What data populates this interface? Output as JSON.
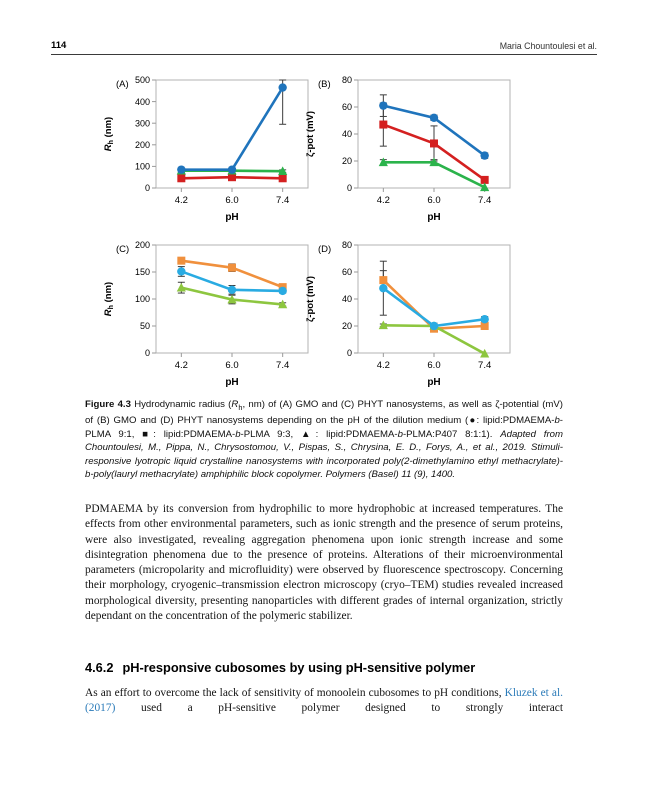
{
  "page": {
    "number": "114",
    "running_head": "Maria Chountoulesi et al."
  },
  "chart_data": [
    {
      "id": "A",
      "panel_label": "(A)",
      "type": "line",
      "x_categories": [
        "4.2",
        "6.0",
        "7.4"
      ],
      "xlabel": "pH",
      "ylabel_segments": [
        {
          "t": "R",
          "s": "i"
        },
        {
          "t": "h",
          "s": "sub"
        },
        {
          "t": " (nm)",
          "s": ""
        }
      ],
      "ylim": [
        0,
        500
      ],
      "yticks": [
        0,
        100,
        200,
        300,
        400,
        500
      ],
      "grid": false,
      "legend": "none",
      "series": [
        {
          "name": "lipid:PDMAEMA-b-PLMA 9:1",
          "marker": "circle",
          "color": "#1f74bc",
          "values": [
            85,
            85,
            465
          ],
          "errors": [
            6,
            5,
            170
          ]
        },
        {
          "name": "lipid:PDMAEMA-b-PLMA 9:3",
          "marker": "square",
          "color": "#d42020",
          "values": [
            45,
            50,
            45
          ],
          "errors": [
            5,
            4,
            5
          ]
        },
        {
          "name": "lipid:PDMAEMA-b-PLMA:P407 8:1:1",
          "marker": "triangle",
          "color": "#2bb34b",
          "values": [
            80,
            80,
            78
          ],
          "errors": [
            8,
            8,
            6
          ]
        }
      ]
    },
    {
      "id": "B",
      "panel_label": "(B)",
      "type": "line",
      "x_categories": [
        "4.2",
        "6.0",
        "7.4"
      ],
      "xlabel": "pH",
      "ylabel_segments": [
        {
          "t": "ζ-pot (mV)",
          "s": ""
        }
      ],
      "ylim": [
        0,
        80
      ],
      "yticks": [
        0,
        20,
        40,
        60,
        80
      ],
      "grid": false,
      "legend": "none",
      "series": [
        {
          "name": "lipid:PDMAEMA-b-PLMA 9:1",
          "marker": "circle",
          "color": "#1f74bc",
          "values": [
            61,
            52,
            24
          ],
          "errors": [
            8,
            2,
            2
          ]
        },
        {
          "name": "lipid:PDMAEMA-b-PLMA 9:3",
          "marker": "square",
          "color": "#d42020",
          "values": [
            47,
            33,
            6
          ],
          "errors": [
            16,
            13,
            1
          ]
        },
        {
          "name": "lipid:PDMAEMA-b-PLMA:P407 8:1:1",
          "marker": "triangle",
          "color": "#2bb34b",
          "values": [
            19,
            19,
            0.5
          ],
          "errors": [
            2,
            2,
            0
          ]
        }
      ]
    },
    {
      "id": "C",
      "panel_label": "(C)",
      "type": "line",
      "x_categories": [
        "4.2",
        "6.0",
        "7.4"
      ],
      "xlabel": "pH",
      "ylabel_segments": [
        {
          "t": "R",
          "s": "i"
        },
        {
          "t": "h",
          "s": "sub"
        },
        {
          "t": " (nm)",
          "s": ""
        }
      ],
      "ylim": [
        0,
        200
      ],
      "yticks": [
        0,
        50,
        100,
        150,
        200
      ],
      "grid": false,
      "legend": "none",
      "series": [
        {
          "name": "lipid:PDMAEMA-b-PLMA 9:1",
          "marker": "circle",
          "color": "#29abe2",
          "values": [
            151,
            117,
            115
          ],
          "errors": [
            9,
            8,
            4
          ]
        },
        {
          "name": "lipid:PDMAEMA-b-PLMA 9:3",
          "marker": "square",
          "color": "#f0903d",
          "values": [
            171,
            158,
            122
          ],
          "errors": [
            5,
            7,
            4
          ]
        },
        {
          "name": "lipid:PDMAEMA-b-PLMA:P407 8:1:1",
          "marker": "triangle",
          "color": "#8dc63f",
          "values": [
            121,
            99,
            90
          ],
          "errors": [
            10,
            8,
            3
          ]
        }
      ]
    },
    {
      "id": "D",
      "panel_label": "(D)",
      "type": "line",
      "x_categories": [
        "4.2",
        "6.0",
        "7.4"
      ],
      "xlabel": "pH",
      "ylabel_segments": [
        {
          "t": "ζ-pot (mV)",
          "s": ""
        }
      ],
      "ylim": [
        0,
        80
      ],
      "yticks": [
        0,
        20,
        40,
        60,
        80
      ],
      "grid": false,
      "legend": "none",
      "series": [
        {
          "name": "lipid:PDMAEMA-b-PLMA 9:1",
          "marker": "circle",
          "color": "#29abe2",
          "values": [
            48,
            20,
            25
          ],
          "errors": [
            20,
            2,
            2
          ]
        },
        {
          "name": "lipid:PDMAEMA-b-PLMA 9:3",
          "marker": "square",
          "color": "#f0903d",
          "values": [
            54,
            18,
            20
          ],
          "errors": [
            7,
            2,
            2
          ]
        },
        {
          "name": "lipid:PDMAEMA-b-PLMA:P407 8:1:1",
          "marker": "triangle",
          "color": "#8dc63f",
          "values": [
            20.5,
            20,
            -0.5
          ],
          "errors": [
            1,
            2,
            0
          ]
        }
      ]
    }
  ],
  "figure": {
    "caption_segments": [
      {
        "t": "Figure 4.3 ",
        "s": "b"
      },
      {
        "t": "Hydrodynamic radius (",
        "s": ""
      },
      {
        "t": "R",
        "s": "i"
      },
      {
        "t": "h",
        "s": "sub"
      },
      {
        "t": ", nm) of (A) GMO and (C) PHYT nanosystems, as well as ζ-potential (mV) of (B) GMO and (D) PHYT nanosystems depending on the pH of the dilution medium (●: lipid:PDMAEMA-",
        "s": ""
      },
      {
        "t": "b",
        "s": "i"
      },
      {
        "t": "-PLMA 9:1, ■: lipid:PDMAEMA-",
        "s": ""
      },
      {
        "t": "b",
        "s": "i"
      },
      {
        "t": "-PLMA 9:3, ▲: lipid:PDMAEMA-",
        "s": ""
      },
      {
        "t": "b",
        "s": "i"
      },
      {
        "t": "-PLMA:P407 8:1:1). ",
        "s": ""
      },
      {
        "t": "Adapted from Chountoulesi, M., Pippa, N., Chrysostomou, V., Pispas, S., Chrysina, E. D., Forys, A., et al., 2019. Stimuli-responsive lyotropic liquid crystalline nanosystems with incorporated poly(2-dimethylamino ethyl methacrylate)-b-poly(lauryl methacrylate) amphiphilic block copolymer. Polymers (Basel) 11 (9), 1400.",
        "s": "i"
      }
    ]
  },
  "body": {
    "paragraph1": "PDMAEMA by its conversion from hydrophilic to more hydrophobic at increased temperatures. The effects from other environmental parameters, such as ionic strength and the presence of serum proteins, were also investigated, revealing aggregation phenomena upon ionic strength increase and some disintegration phenomena due to the presence of proteins. Alterations of their microenvironmental parameters (micropolarity and microfluidity) were observed by fluorescence spectroscopy. Concerning their morphology, cryogenic–transmission electron microscopy (cryo–TEM) studies revealed increased morphological diversity, presenting nanoparticles with different grades of internal organization, strictly dependant on the concentration of the polymeric stabilizer.",
    "heading_number": "4.6.2",
    "heading_title": "pH-responsive cubosomes by using pH-sensitive polymer",
    "paragraph2_pre": "As an effort to overcome the lack of sensitivity of monoolein cubosomes to pH conditions, ",
    "paragraph2_link": "Kluzek et al. (2017)",
    "paragraph2_post": " used a pH-sensitive polymer designed to strongly interact"
  }
}
